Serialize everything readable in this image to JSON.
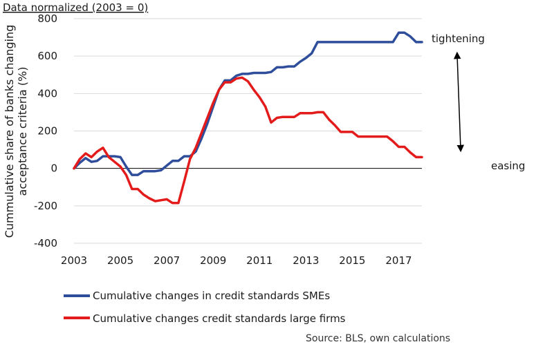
{
  "chart_data": {
    "type": "line",
    "subtitle": "Data normalized (2003 = 0)",
    "ylabel_line1": "Cummulative share of banks changing",
    "ylabel_line2": "acceptance criteria (%)",
    "xlim": [
      2003,
      2018
    ],
    "ylim": [
      -400,
      800
    ],
    "x_ticks": [
      "2003",
      "2005",
      "2007",
      "2009",
      "2011",
      "2013",
      "2015",
      "2017"
    ],
    "y_ticks": [
      "800",
      "600",
      "400",
      "200",
      "0",
      "-200",
      "-400"
    ],
    "grid": "horizontal",
    "annotations": {
      "top": "tightening",
      "bottom": "easing"
    },
    "legend_position": "bottom",
    "source": "Source: BLS, own calculations",
    "series": [
      {
        "name": "Cumulative changes in credit standards SMEs",
        "color": "#2e4d9a",
        "points": [
          [
            2003,
            0
          ],
          [
            2003.25,
            30
          ],
          [
            2003.5,
            55
          ],
          [
            2003.75,
            35
          ],
          [
            2004,
            40
          ],
          [
            2004.25,
            65
          ],
          [
            2004.5,
            65
          ],
          [
            2004.75,
            65
          ],
          [
            2005,
            60
          ],
          [
            2005.25,
            10
          ],
          [
            2005.5,
            -35
          ],
          [
            2005.75,
            -35
          ],
          [
            2006,
            -15
          ],
          [
            2006.25,
            -15
          ],
          [
            2006.5,
            -15
          ],
          [
            2006.75,
            -10
          ],
          [
            2007,
            15
          ],
          [
            2007.25,
            40
          ],
          [
            2007.5,
            40
          ],
          [
            2007.75,
            65
          ],
          [
            2008,
            65
          ],
          [
            2008.25,
            90
          ],
          [
            2008.5,
            160
          ],
          [
            2008.75,
            240
          ],
          [
            2009,
            330
          ],
          [
            2009.25,
            420
          ],
          [
            2009.5,
            470
          ],
          [
            2009.75,
            470
          ],
          [
            2010,
            495
          ],
          [
            2010.25,
            505
          ],
          [
            2010.5,
            505
          ],
          [
            2010.75,
            510
          ],
          [
            2011,
            510
          ],
          [
            2011.25,
            510
          ],
          [
            2011.5,
            515
          ],
          [
            2011.75,
            540
          ],
          [
            2012,
            540
          ],
          [
            2012.25,
            545
          ],
          [
            2012.5,
            545
          ],
          [
            2012.75,
            570
          ],
          [
            2013,
            590
          ],
          [
            2013.25,
            615
          ],
          [
            2013.5,
            675
          ],
          [
            2013.75,
            675
          ],
          [
            2014,
            675
          ],
          [
            2014.5,
            675
          ],
          [
            2015,
            675
          ],
          [
            2015.5,
            675
          ],
          [
            2016,
            675
          ],
          [
            2016.5,
            675
          ],
          [
            2016.75,
            675
          ],
          [
            2017,
            725
          ],
          [
            2017.25,
            725
          ],
          [
            2017.5,
            705
          ],
          [
            2017.75,
            675
          ],
          [
            2018,
            675
          ]
        ]
      },
      {
        "name": "Cumulative changes credit standards large firms",
        "color": "#e31b1b",
        "points": [
          [
            2003,
            0
          ],
          [
            2003.25,
            50
          ],
          [
            2003.5,
            80
          ],
          [
            2003.75,
            60
          ],
          [
            2004,
            90
          ],
          [
            2004.25,
            110
          ],
          [
            2004.5,
            60
          ],
          [
            2004.75,
            35
          ],
          [
            2005,
            10
          ],
          [
            2005.25,
            -35
          ],
          [
            2005.5,
            -110
          ],
          [
            2005.75,
            -110
          ],
          [
            2006,
            -140
          ],
          [
            2006.25,
            -160
          ],
          [
            2006.5,
            -175
          ],
          [
            2006.75,
            -170
          ],
          [
            2007,
            -165
          ],
          [
            2007.25,
            -185
          ],
          [
            2007.5,
            -185
          ],
          [
            2007.75,
            -70
          ],
          [
            2008,
            50
          ],
          [
            2008.25,
            110
          ],
          [
            2008.5,
            190
          ],
          [
            2008.75,
            270
          ],
          [
            2009,
            350
          ],
          [
            2009.25,
            420
          ],
          [
            2009.5,
            460
          ],
          [
            2009.75,
            460
          ],
          [
            2010,
            480
          ],
          [
            2010.25,
            485
          ],
          [
            2010.5,
            465
          ],
          [
            2010.75,
            420
          ],
          [
            2011,
            380
          ],
          [
            2011.25,
            330
          ],
          [
            2011.5,
            245
          ],
          [
            2011.75,
            270
          ],
          [
            2012,
            275
          ],
          [
            2012.25,
            275
          ],
          [
            2012.5,
            275
          ],
          [
            2012.75,
            295
          ],
          [
            2013,
            295
          ],
          [
            2013.25,
            295
          ],
          [
            2013.5,
            300
          ],
          [
            2013.75,
            300
          ],
          [
            2014,
            260
          ],
          [
            2014.25,
            230
          ],
          [
            2014.5,
            195
          ],
          [
            2014.75,
            195
          ],
          [
            2015,
            195
          ],
          [
            2015.25,
            170
          ],
          [
            2015.5,
            170
          ],
          [
            2016,
            170
          ],
          [
            2016.5,
            170
          ],
          [
            2016.75,
            145
          ],
          [
            2017,
            115
          ],
          [
            2017.25,
            115
          ],
          [
            2017.5,
            85
          ],
          [
            2017.75,
            60
          ],
          [
            2018,
            60
          ]
        ]
      }
    ]
  }
}
